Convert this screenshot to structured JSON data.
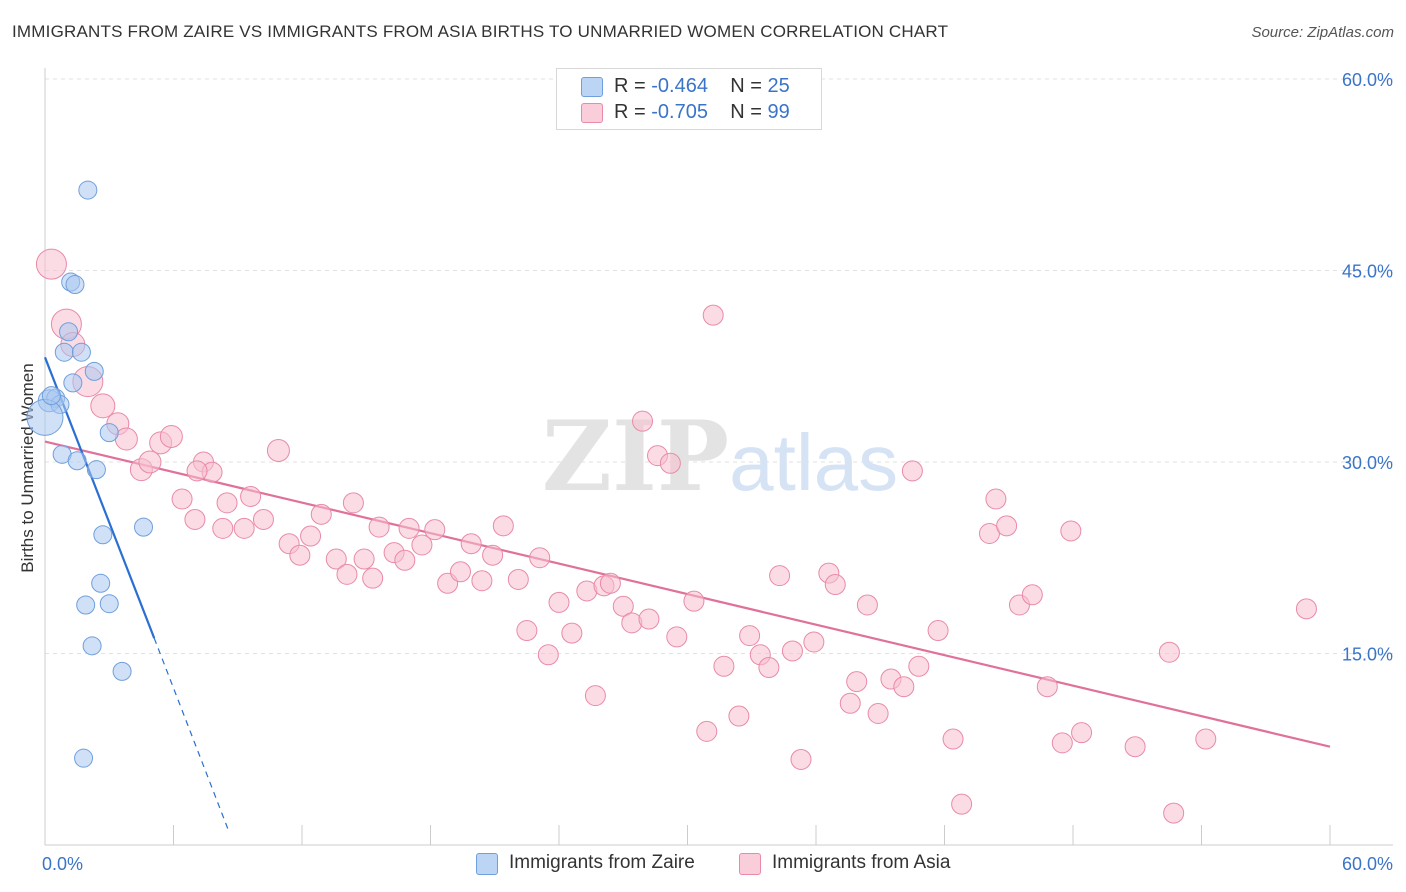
{
  "chart_data": {
    "type": "scatter",
    "title": "IMMIGRANTS FROM ZAIRE VS IMMIGRANTS FROM ASIA BIRTHS TO UNMARRIED WOMEN CORRELATION CHART",
    "source": "Source: ZipAtlas.com",
    "xlabel": "",
    "ylabel": "Births to Unmarried Women",
    "xlim": [
      0,
      60
    ],
    "ylim": [
      0,
      60
    ],
    "x_tick_labels": [
      "0.0%",
      "60.0%"
    ],
    "y_tick_labels": [
      "15.0%",
      "30.0%",
      "45.0%",
      "60.0%"
    ],
    "y_ticks": [
      15,
      30,
      45,
      60
    ],
    "grid": true,
    "legend_position": "top-center",
    "watermark": "ZIPatlas",
    "legend": [
      {
        "label_r": "R = ",
        "r": "-0.464",
        "label_n": "N = ",
        "n": "25"
      },
      {
        "label_r": "R = ",
        "r": "-0.705",
        "label_n": "N = ",
        "n": "99"
      }
    ],
    "series": [
      {
        "name": "Immigrants from Zaire",
        "color": "#a9c8f0",
        "stroke": "#6f9fdc",
        "line_color": "#2a6fd1",
        "trend": {
          "x0": 0.0,
          "y0": 38.2,
          "x1": 5.1,
          "y1": 16.2,
          "dash_x1": 8.6,
          "dash_y1": 1.0
        },
        "points": [
          {
            "x": 2.0,
            "y": 51.3,
            "s": 9
          },
          {
            "x": 1.2,
            "y": 44.1,
            "s": 9
          },
          {
            "x": 1.4,
            "y": 43.9,
            "s": 9
          },
          {
            "x": 1.1,
            "y": 40.2,
            "s": 9
          },
          {
            "x": 0.9,
            "y": 38.6,
            "s": 9
          },
          {
            "x": 1.7,
            "y": 38.6,
            "s": 9
          },
          {
            "x": 2.3,
            "y": 37.1,
            "s": 9
          },
          {
            "x": 1.3,
            "y": 36.2,
            "s": 9
          },
          {
            "x": 0.2,
            "y": 34.8,
            "s": 11
          },
          {
            "x": 0.5,
            "y": 35.0,
            "s": 9
          },
          {
            "x": 0.7,
            "y": 34.5,
            "s": 9
          },
          {
            "x": 0.0,
            "y": 33.5,
            "s": 18
          },
          {
            "x": 3.0,
            "y": 32.3,
            "s": 9
          },
          {
            "x": 0.8,
            "y": 30.6,
            "s": 9
          },
          {
            "x": 1.5,
            "y": 30.1,
            "s": 9
          },
          {
            "x": 2.4,
            "y": 29.4,
            "s": 9
          },
          {
            "x": 4.6,
            "y": 24.9,
            "s": 9
          },
          {
            "x": 2.7,
            "y": 24.3,
            "s": 9
          },
          {
            "x": 2.6,
            "y": 20.5,
            "s": 9
          },
          {
            "x": 1.9,
            "y": 18.8,
            "s": 9
          },
          {
            "x": 3.0,
            "y": 18.9,
            "s": 9
          },
          {
            "x": 2.2,
            "y": 15.6,
            "s": 9
          },
          {
            "x": 3.6,
            "y": 13.6,
            "s": 9
          },
          {
            "x": 1.8,
            "y": 6.8,
            "s": 9
          },
          {
            "x": 0.3,
            "y": 35.2,
            "s": 9
          }
        ]
      },
      {
        "name": "Immigrants from Asia",
        "color": "#f7bfd0",
        "stroke": "#e98aa8",
        "line_color": "#e0719a",
        "trend": {
          "x0": 0.0,
          "y0": 31.6,
          "x1": 60.0,
          "y1": 7.7
        },
        "points": [
          {
            "x": 0.3,
            "y": 45.5,
            "s": 15
          },
          {
            "x": 1.0,
            "y": 40.8,
            "s": 15
          },
          {
            "x": 1.3,
            "y": 39.2,
            "s": 12
          },
          {
            "x": 2.0,
            "y": 36.3,
            "s": 15
          },
          {
            "x": 2.7,
            "y": 34.4,
            "s": 12
          },
          {
            "x": 3.4,
            "y": 33.0,
            "s": 11
          },
          {
            "x": 3.8,
            "y": 31.8,
            "s": 11
          },
          {
            "x": 5.4,
            "y": 31.5,
            "s": 11
          },
          {
            "x": 5.9,
            "y": 32.0,
            "s": 11
          },
          {
            "x": 4.5,
            "y": 29.4,
            "s": 11
          },
          {
            "x": 4.9,
            "y": 30.0,
            "s": 11
          },
          {
            "x": 7.4,
            "y": 30.0,
            "s": 10
          },
          {
            "x": 7.8,
            "y": 29.2,
            "s": 10
          },
          {
            "x": 10.9,
            "y": 30.9,
            "s": 11
          },
          {
            "x": 6.4,
            "y": 27.1,
            "s": 10
          },
          {
            "x": 8.5,
            "y": 26.8,
            "s": 10
          },
          {
            "x": 9.6,
            "y": 27.3,
            "s": 10
          },
          {
            "x": 7.0,
            "y": 25.5,
            "s": 10
          },
          {
            "x": 8.3,
            "y": 24.8,
            "s": 10
          },
          {
            "x": 9.3,
            "y": 24.8,
            "s": 10
          },
          {
            "x": 10.2,
            "y": 25.5,
            "s": 10
          },
          {
            "x": 11.4,
            "y": 23.6,
            "s": 10
          },
          {
            "x": 11.9,
            "y": 22.7,
            "s": 10
          },
          {
            "x": 12.4,
            "y": 24.2,
            "s": 10
          },
          {
            "x": 12.9,
            "y": 25.9,
            "s": 10
          },
          {
            "x": 13.6,
            "y": 22.4,
            "s": 10
          },
          {
            "x": 14.1,
            "y": 21.2,
            "s": 10
          },
          {
            "x": 14.4,
            "y": 26.8,
            "s": 10
          },
          {
            "x": 14.9,
            "y": 22.4,
            "s": 10
          },
          {
            "x": 15.3,
            "y": 20.9,
            "s": 10
          },
          {
            "x": 15.6,
            "y": 24.9,
            "s": 10
          },
          {
            "x": 16.3,
            "y": 22.9,
            "s": 10
          },
          {
            "x": 16.8,
            "y": 22.3,
            "s": 10
          },
          {
            "x": 17.0,
            "y": 24.8,
            "s": 10
          },
          {
            "x": 17.6,
            "y": 23.5,
            "s": 10
          },
          {
            "x": 18.2,
            "y": 24.7,
            "s": 10
          },
          {
            "x": 18.8,
            "y": 20.5,
            "s": 10
          },
          {
            "x": 19.4,
            "y": 21.4,
            "s": 10
          },
          {
            "x": 19.9,
            "y": 23.6,
            "s": 10
          },
          {
            "x": 20.4,
            "y": 20.7,
            "s": 10
          },
          {
            "x": 20.9,
            "y": 22.7,
            "s": 10
          },
          {
            "x": 21.4,
            "y": 25.0,
            "s": 10
          },
          {
            "x": 22.1,
            "y": 20.8,
            "s": 10
          },
          {
            "x": 22.5,
            "y": 16.8,
            "s": 10
          },
          {
            "x": 23.1,
            "y": 22.5,
            "s": 10
          },
          {
            "x": 23.5,
            "y": 14.9,
            "s": 10
          },
          {
            "x": 24.0,
            "y": 19.0,
            "s": 10
          },
          {
            "x": 24.6,
            "y": 16.6,
            "s": 10
          },
          {
            "x": 25.3,
            "y": 19.9,
            "s": 10
          },
          {
            "x": 25.7,
            "y": 11.7,
            "s": 10
          },
          {
            "x": 26.1,
            "y": 20.3,
            "s": 10
          },
          {
            "x": 26.4,
            "y": 20.5,
            "s": 10
          },
          {
            "x": 27.0,
            "y": 18.7,
            "s": 10
          },
          {
            "x": 27.4,
            "y": 17.4,
            "s": 10
          },
          {
            "x": 27.9,
            "y": 33.2,
            "s": 10
          },
          {
            "x": 28.2,
            "y": 17.7,
            "s": 10
          },
          {
            "x": 28.6,
            "y": 30.5,
            "s": 10
          },
          {
            "x": 29.2,
            "y": 29.9,
            "s": 10
          },
          {
            "x": 29.5,
            "y": 16.3,
            "s": 10
          },
          {
            "x": 30.3,
            "y": 19.1,
            "s": 10
          },
          {
            "x": 30.9,
            "y": 8.9,
            "s": 10
          },
          {
            "x": 31.2,
            "y": 41.5,
            "s": 10
          },
          {
            "x": 31.7,
            "y": 14.0,
            "s": 10
          },
          {
            "x": 32.4,
            "y": 10.1,
            "s": 10
          },
          {
            "x": 32.9,
            "y": 16.4,
            "s": 10
          },
          {
            "x": 33.4,
            "y": 14.9,
            "s": 10
          },
          {
            "x": 33.8,
            "y": 13.9,
            "s": 10
          },
          {
            "x": 34.3,
            "y": 21.1,
            "s": 10
          },
          {
            "x": 34.9,
            "y": 15.2,
            "s": 10
          },
          {
            "x": 35.3,
            "y": 6.7,
            "s": 10
          },
          {
            "x": 35.9,
            "y": 15.9,
            "s": 10
          },
          {
            "x": 36.6,
            "y": 21.3,
            "s": 10
          },
          {
            "x": 36.9,
            "y": 20.4,
            "s": 10
          },
          {
            "x": 37.6,
            "y": 11.1,
            "s": 10
          },
          {
            "x": 37.9,
            "y": 12.8,
            "s": 10
          },
          {
            "x": 38.4,
            "y": 18.8,
            "s": 10
          },
          {
            "x": 38.9,
            "y": 10.3,
            "s": 10
          },
          {
            "x": 39.5,
            "y": 13.0,
            "s": 10
          },
          {
            "x": 40.1,
            "y": 12.4,
            "s": 10
          },
          {
            "x": 40.5,
            "y": 29.3,
            "s": 10
          },
          {
            "x": 40.8,
            "y": 14.0,
            "s": 10
          },
          {
            "x": 41.7,
            "y": 16.8,
            "s": 10
          },
          {
            "x": 42.4,
            "y": 8.3,
            "s": 10
          },
          {
            "x": 42.8,
            "y": 3.2,
            "s": 10
          },
          {
            "x": 44.1,
            "y": 24.4,
            "s": 10
          },
          {
            "x": 44.4,
            "y": 27.1,
            "s": 10
          },
          {
            "x": 44.9,
            "y": 25.0,
            "s": 10
          },
          {
            "x": 45.5,
            "y": 18.8,
            "s": 10
          },
          {
            "x": 46.1,
            "y": 19.6,
            "s": 10
          },
          {
            "x": 46.8,
            "y": 12.4,
            "s": 10
          },
          {
            "x": 47.5,
            "y": 8.0,
            "s": 10
          },
          {
            "x": 47.9,
            "y": 24.6,
            "s": 10
          },
          {
            "x": 48.4,
            "y": 8.8,
            "s": 10
          },
          {
            "x": 50.9,
            "y": 7.7,
            "s": 10
          },
          {
            "x": 52.5,
            "y": 15.1,
            "s": 10
          },
          {
            "x": 52.7,
            "y": 2.5,
            "s": 10
          },
          {
            "x": 54.2,
            "y": 8.3,
            "s": 10
          },
          {
            "x": 58.9,
            "y": 18.5,
            "s": 10
          },
          {
            "x": 7.1,
            "y": 29.3,
            "s": 10
          }
        ]
      }
    ]
  }
}
